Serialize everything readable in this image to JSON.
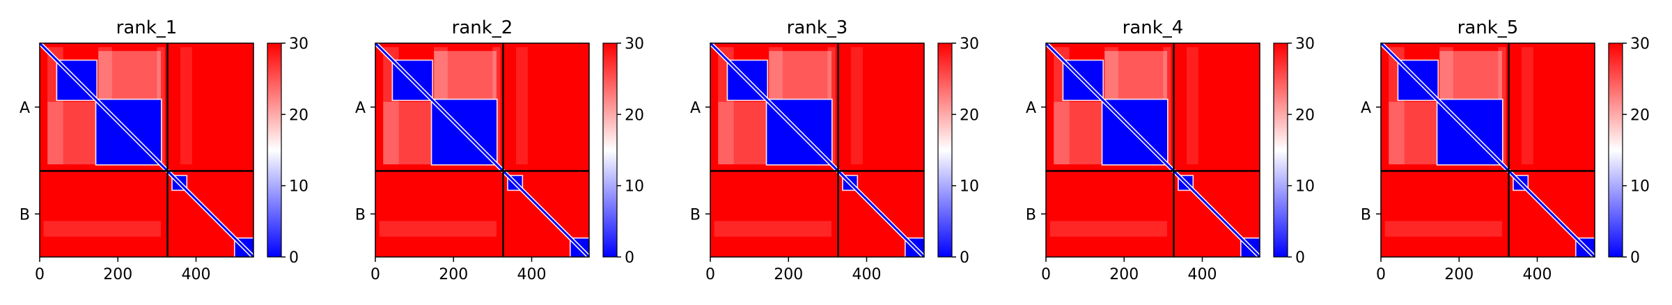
{
  "chart_data": [
    {
      "type": "heatmap",
      "title": "rank_1",
      "x_ticks": [
        0,
        200,
        400
      ],
      "y_tick_labels": [
        "A",
        "B"
      ],
      "chain_boundary": 327,
      "chain_lengths": {
        "A": 327,
        "B": 220
      },
      "xlim": [
        0,
        547
      ],
      "colorbar": {
        "min": 0,
        "max": 30,
        "ticks": [
          0,
          10,
          20,
          30
        ],
        "colormap": "bwr"
      },
      "domains": [
        {
          "start": 45,
          "end": 145
        },
        {
          "start": 145,
          "end": 310
        },
        {
          "start": 340,
          "end": 375
        },
        {
          "start": 500,
          "end": 547
        }
      ]
    },
    {
      "type": "heatmap",
      "title": "rank_2",
      "x_ticks": [
        0,
        200,
        400
      ],
      "y_tick_labels": [
        "A",
        "B"
      ],
      "chain_boundary": 327,
      "chain_lengths": {
        "A": 327,
        "B": 220
      },
      "xlim": [
        0,
        547
      ],
      "colorbar": {
        "min": 0,
        "max": 30,
        "ticks": [
          0,
          10,
          20,
          30
        ],
        "colormap": "bwr"
      },
      "domains": [
        {
          "start": 45,
          "end": 145
        },
        {
          "start": 145,
          "end": 310
        },
        {
          "start": 340,
          "end": 375
        },
        {
          "start": 500,
          "end": 547
        }
      ]
    },
    {
      "type": "heatmap",
      "title": "rank_3",
      "x_ticks": [
        0,
        200,
        400
      ],
      "y_tick_labels": [
        "A",
        "B"
      ],
      "chain_boundary": 327,
      "chain_lengths": {
        "A": 327,
        "B": 220
      },
      "xlim": [
        0,
        547
      ],
      "colorbar": {
        "min": 0,
        "max": 30,
        "ticks": [
          0,
          10,
          20,
          30
        ],
        "colormap": "bwr"
      },
      "domains": [
        {
          "start": 45,
          "end": 145
        },
        {
          "start": 145,
          "end": 310
        },
        {
          "start": 340,
          "end": 375
        },
        {
          "start": 500,
          "end": 547
        }
      ]
    },
    {
      "type": "heatmap",
      "title": "rank_4",
      "x_ticks": [
        0,
        200,
        400
      ],
      "y_tick_labels": [
        "A",
        "B"
      ],
      "chain_boundary": 327,
      "chain_lengths": {
        "A": 327,
        "B": 220
      },
      "xlim": [
        0,
        547
      ],
      "colorbar": {
        "min": 0,
        "max": 30,
        "ticks": [
          0,
          10,
          20,
          30
        ],
        "colormap": "bwr"
      },
      "domains": [
        {
          "start": 45,
          "end": 145
        },
        {
          "start": 145,
          "end": 310
        },
        {
          "start": 340,
          "end": 375
        },
        {
          "start": 500,
          "end": 547
        }
      ]
    },
    {
      "type": "heatmap",
      "title": "rank_5",
      "x_ticks": [
        0,
        200,
        400
      ],
      "y_tick_labels": [
        "A",
        "B"
      ],
      "chain_boundary": 327,
      "chain_lengths": {
        "A": 327,
        "B": 220
      },
      "xlim": [
        0,
        547
      ],
      "colorbar": {
        "min": 0,
        "max": 30,
        "ticks": [
          0,
          10,
          20,
          30
        ],
        "colormap": "bwr"
      },
      "domains": [
        {
          "start": 45,
          "end": 145
        },
        {
          "start": 145,
          "end": 310
        },
        {
          "start": 340,
          "end": 375
        },
        {
          "start": 500,
          "end": 547
        }
      ]
    }
  ],
  "colors": {
    "high": "#ff0000",
    "mid": "#ffffff",
    "low": "#0000ff",
    "axis": "#000000"
  }
}
